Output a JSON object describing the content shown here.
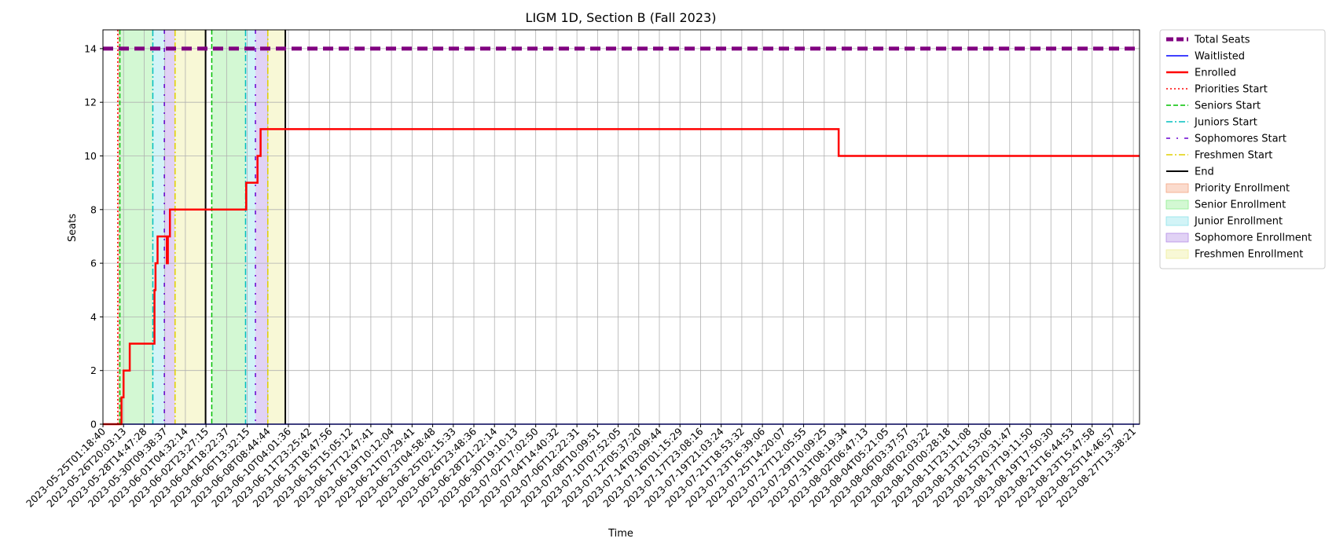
{
  "chart_data": {
    "type": "line",
    "title": "LIGM 1D, Section B (Fall 2023)",
    "xlabel": "Time",
    "ylabel": "Seats",
    "ylim": [
      0,
      14.7
    ],
    "yticks": [
      0,
      2,
      4,
      6,
      8,
      10,
      12,
      14
    ],
    "grid": true,
    "legend_position": "outside-right",
    "x_tick_labels": [
      "2023-05-25T01:18:40",
      "2023-05-26T20:03:13",
      "2023-05-28T14:47:28",
      "2023-05-30T09:38:37",
      "2023-06-01T04:32:14",
      "2023-06-02T23:27:15",
      "2023-06-04T18:22:37",
      "2023-06-06T13:32:15",
      "2023-06-08T08:44:44",
      "2023-06-10T04:01:36",
      "2023-06-11T23:25:42",
      "2023-06-13T18:47:56",
      "2023-06-15T15:05:12",
      "2023-06-17T12:47:41",
      "2023-06-19T10:12:04",
      "2023-06-21T07:29:41",
      "2023-06-23T04:58:48",
      "2023-06-25T02:15:33",
      "2023-06-26T23:48:36",
      "2023-06-28T21:22:14",
      "2023-06-30T19:10:13",
      "2023-07-02T17:02:50",
      "2023-07-04T14:40:32",
      "2023-07-06T12:22:31",
      "2023-07-08T10:09:51",
      "2023-07-10T07:52:05",
      "2023-07-12T05:37:20",
      "2023-07-14T03:09:44",
      "2023-07-16T01:15:29",
      "2023-07-17T23:08:16",
      "2023-07-19T21:03:24",
      "2023-07-21T18:53:32",
      "2023-07-23T16:39:06",
      "2023-07-25T14:20:07",
      "2023-07-27T12:05:55",
      "2023-07-29T10:09:25",
      "2023-07-31T08:19:34",
      "2023-08-02T06:47:13",
      "2023-08-04T05:21:05",
      "2023-08-06T03:37:57",
      "2023-08-08T02:03:22",
      "2023-08-10T00:28:18",
      "2023-08-11T23:11:08",
      "2023-08-13T21:53:06",
      "2023-08-15T20:31:47",
      "2023-08-17T19:11:50",
      "2023-08-19T17:50:30",
      "2023-08-21T16:44:53",
      "2023-08-23T15:47:58",
      "2023-08-25T14:46:57",
      "2023-08-27T13:38:21"
    ],
    "x_range_index": [
      0,
      50.3
    ],
    "total_seats": 14,
    "series": [
      {
        "name": "Total Seats",
        "color": "#800080",
        "points": [
          [
            0,
            14
          ],
          [
            50.3,
            14
          ]
        ]
      },
      {
        "name": "Waitlisted",
        "color": "#0000ff",
        "points": [
          [
            0,
            0
          ],
          [
            50.3,
            0
          ]
        ]
      },
      {
        "name": "Enrolled",
        "color": "#ff0000",
        "points": [
          [
            0,
            0
          ],
          [
            0.9,
            0
          ],
          [
            0.9,
            1
          ],
          [
            1.0,
            1
          ],
          [
            1.0,
            2
          ],
          [
            1.3,
            2
          ],
          [
            1.3,
            3
          ],
          [
            2.5,
            3
          ],
          [
            2.5,
            5
          ],
          [
            2.55,
            5
          ],
          [
            2.55,
            6
          ],
          [
            2.65,
            6
          ],
          [
            2.65,
            7
          ],
          [
            3.1,
            7
          ],
          [
            3.1,
            6
          ],
          [
            3.15,
            6
          ],
          [
            3.15,
            7
          ],
          [
            3.25,
            7
          ],
          [
            3.25,
            8
          ],
          [
            6.95,
            8
          ],
          [
            6.95,
            9
          ],
          [
            7.5,
            9
          ],
          [
            7.5,
            10
          ],
          [
            7.65,
            10
          ],
          [
            7.65,
            11
          ],
          [
            35.7,
            11
          ],
          [
            35.7,
            10
          ],
          [
            50.3,
            10
          ]
        ]
      }
    ],
    "vertical_markers": [
      {
        "name": "Priorities Start",
        "color": "#ff0000",
        "x": [
          0.72
        ],
        "style": "dotted"
      },
      {
        "name": "Seniors Start",
        "color": "#00c000",
        "x": [
          0.82,
          5.28
        ],
        "style": "dashed"
      },
      {
        "name": "Juniors Start",
        "color": "#00bfbf",
        "x": [
          2.42,
          6.92
        ],
        "style": "dashdot"
      },
      {
        "name": "Sophomores Start",
        "color": "#6a00d0",
        "x": [
          2.98,
          7.4
        ],
        "style": "loosedashdot"
      },
      {
        "name": "Freshmen Start",
        "color": "#e0d000",
        "x": [
          3.5,
          8.0
        ],
        "style": "dashdot"
      },
      {
        "name": "End",
        "color": "#000000",
        "x": [
          4.98,
          8.85
        ],
        "style": "solid"
      }
    ],
    "bands": [
      {
        "name": "Priority Enrollment",
        "color": "#f4a582",
        "ranges": [
          [
            0.72,
            0.82
          ]
        ]
      },
      {
        "name": "Senior Enrollment",
        "color": "#90ee90",
        "ranges": [
          [
            0.82,
            2.42
          ],
          [
            5.28,
            6.92
          ]
        ]
      },
      {
        "name": "Junior Enrollment",
        "color": "#8fe3ea",
        "ranges": [
          [
            2.42,
            2.98
          ],
          [
            6.92,
            7.4
          ]
        ]
      },
      {
        "name": "Sophomore Enrollment",
        "color": "#b48ee6",
        "ranges": [
          [
            2.98,
            3.5
          ],
          [
            7.4,
            8.0
          ]
        ]
      },
      {
        "name": "Freshmen Enrollment",
        "color": "#eeee99",
        "ranges": [
          [
            3.5,
            4.98
          ],
          [
            8.0,
            8.85
          ]
        ]
      }
    ]
  },
  "legend": [
    {
      "label": "Total Seats",
      "kind": "line",
      "color": "#800080",
      "dash": "9,4",
      "width": 5
    },
    {
      "label": "Waitlisted",
      "kind": "line",
      "color": "#0000ff",
      "dash": "",
      "width": 1.5
    },
    {
      "label": "Enrolled",
      "kind": "line",
      "color": "#ff0000",
      "dash": "",
      "width": 2.5
    },
    {
      "label": "Priorities Start",
      "kind": "line",
      "color": "#ff0000",
      "dash": "2,3",
      "width": 1.5
    },
    {
      "label": "Seniors Start",
      "kind": "line",
      "color": "#00c000",
      "dash": "6,3",
      "width": 1.5
    },
    {
      "label": "Juniors Start",
      "kind": "line",
      "color": "#00bfbf",
      "dash": "8,3,2,3",
      "width": 1.5
    },
    {
      "label": "Sophomores Start",
      "kind": "line",
      "color": "#6a00d0",
      "dash": "5,8,2,8",
      "width": 1.5
    },
    {
      "label": "Freshmen Start",
      "kind": "line",
      "color": "#e0d000",
      "dash": "8,3,2,3",
      "width": 1.5
    },
    {
      "label": "End",
      "kind": "line",
      "color": "#000000",
      "dash": "",
      "width": 2
    },
    {
      "label": "Priority Enrollment",
      "kind": "patch",
      "color": "#f4a582"
    },
    {
      "label": "Senior Enrollment",
      "kind": "patch",
      "color": "#90ee90"
    },
    {
      "label": "Junior Enrollment",
      "kind": "patch",
      "color": "#8fe3ea"
    },
    {
      "label": "Sophomore Enrollment",
      "kind": "patch",
      "color": "#b48ee6"
    },
    {
      "label": "Freshmen Enrollment",
      "kind": "patch",
      "color": "#eeee99"
    }
  ]
}
